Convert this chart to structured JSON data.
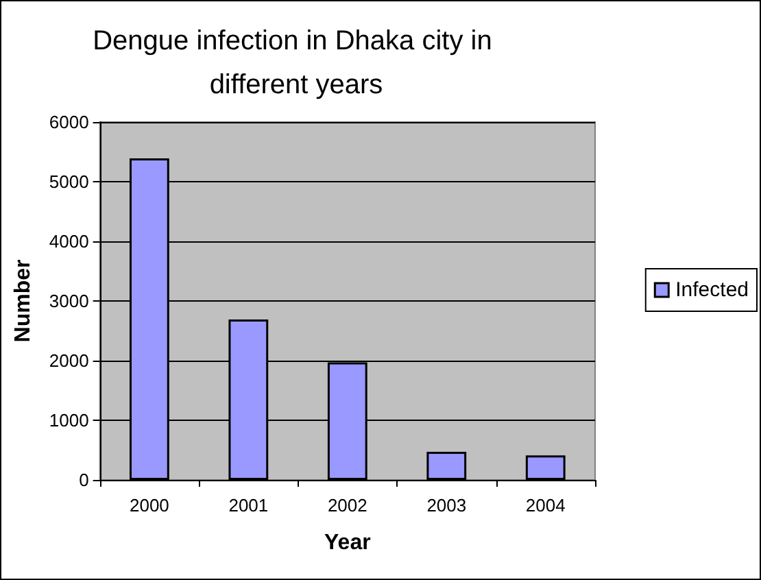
{
  "chart_data": {
    "type": "bar",
    "title": "Dengue infection in Dhaka city in different years",
    "xlabel": "Year",
    "ylabel": "Number",
    "categories": [
      "2000",
      "2001",
      "2002",
      "2003",
      "2004"
    ],
    "series": [
      {
        "name": "Infected",
        "color": "#9999ff",
        "values": [
          5390,
          2690,
          1970,
          470,
          410
        ]
      }
    ],
    "ylim": [
      0,
      6000
    ],
    "yticks": [
      0,
      1000,
      2000,
      3000,
      4000,
      5000,
      6000
    ],
    "grid": "y",
    "legend": "right"
  }
}
